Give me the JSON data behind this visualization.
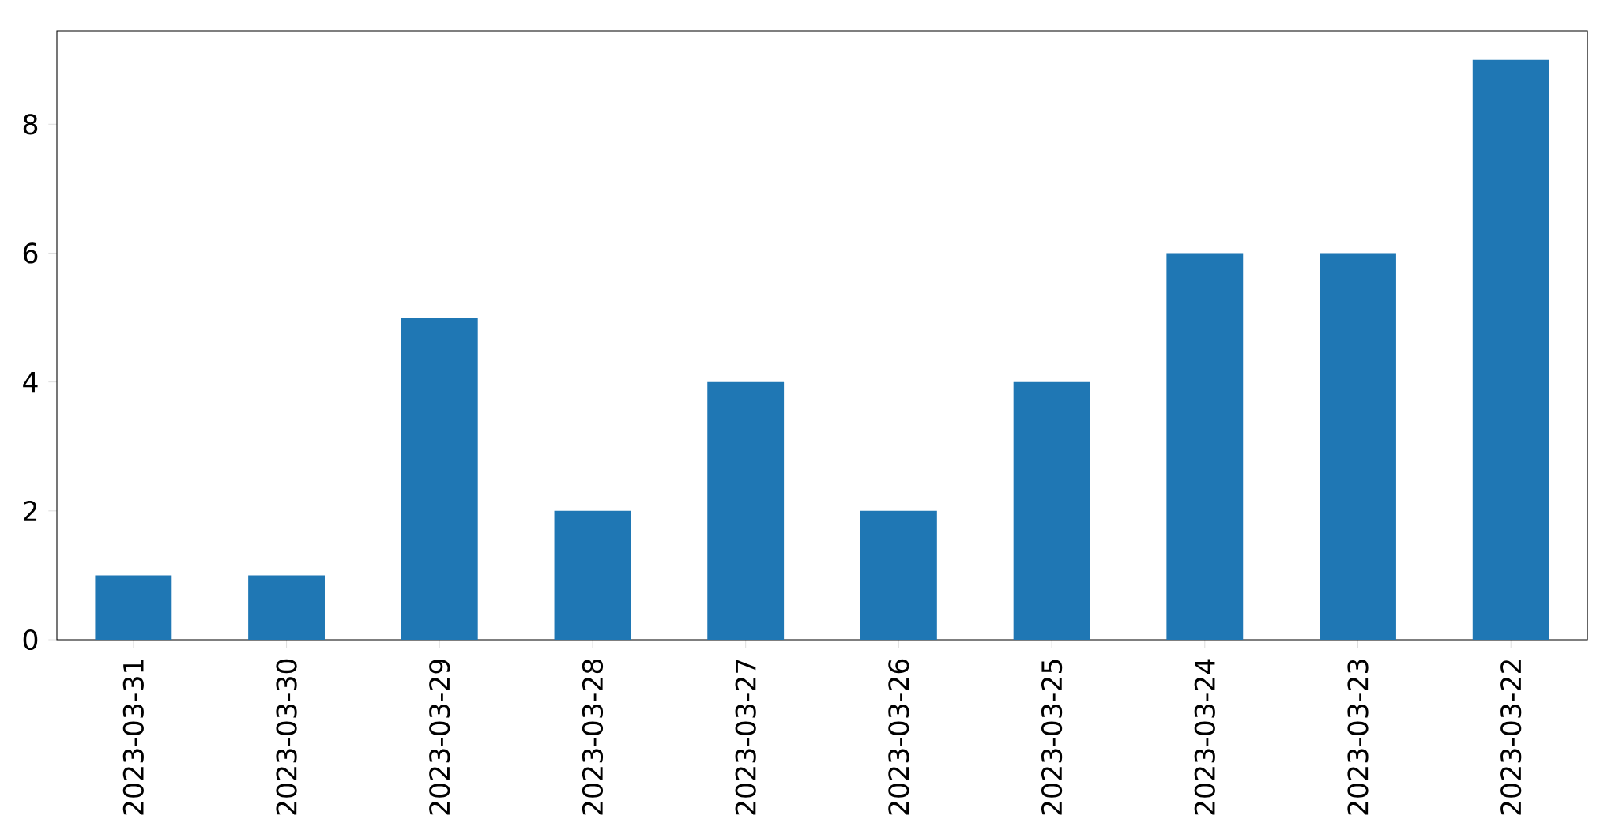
{
  "chart_data": {
    "type": "bar",
    "categories": [
      "2023-03-31",
      "2023-03-30",
      "2023-03-29",
      "2023-03-28",
      "2023-03-27",
      "2023-03-26",
      "2023-03-25",
      "2023-03-24",
      "2023-03-23",
      "2023-03-22"
    ],
    "values": [
      1,
      1,
      5,
      2,
      4,
      2,
      4,
      6,
      6,
      9
    ],
    "color": "#1f77b4",
    "ylim": [
      0,
      9.45
    ],
    "yticks": [
      0,
      2,
      4,
      6,
      8
    ]
  }
}
